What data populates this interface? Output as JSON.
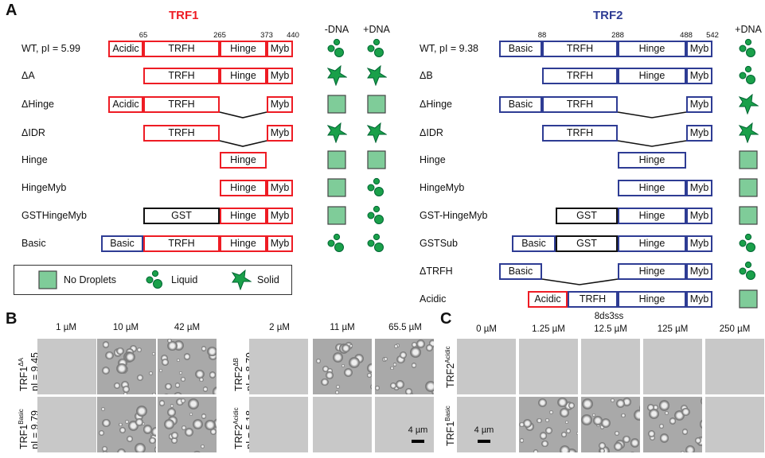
{
  "panel_labels": {
    "a": "A",
    "b": "B",
    "c": "C"
  },
  "colors": {
    "trf1": "#ee1c24",
    "trf2": "#2e3c94",
    "gst": "#111111",
    "droplet_fill": "#1aa04a",
    "no_droplet_fill": "#7fcc99"
  },
  "trf1": {
    "title": "TRF1",
    "residues": [
      "65",
      "265",
      "373",
      "440"
    ],
    "col_headers": [
      "-DNA",
      "+DNA"
    ],
    "rows": [
      {
        "label": "WT, pI = 5.99",
        "segments": [
          "Acidic",
          "TRFH",
          "Hinge",
          "Myb"
        ],
        "minus": "liquid",
        "plus": "liquid"
      },
      {
        "label": "ΔA",
        "segments": [
          "TRFH",
          "Hinge",
          "Myb"
        ],
        "minus": "solid",
        "plus": "solid"
      },
      {
        "label": "ΔHinge",
        "segments": [
          "Acidic",
          "TRFH",
          "Myb"
        ],
        "minus": "none",
        "plus": "none"
      },
      {
        "label": "ΔIDR",
        "segments": [
          "TRFH",
          "Myb"
        ],
        "minus": "solid",
        "plus": "solid"
      },
      {
        "label": "Hinge",
        "segments": [
          "Hinge"
        ],
        "minus": "none",
        "plus": "none"
      },
      {
        "label": "HingeMyb",
        "segments": [
          "Hinge",
          "Myb"
        ],
        "minus": "none",
        "plus": "liquid"
      },
      {
        "label": "GSTHingeMyb",
        "segments": [
          "GST",
          "Hinge",
          "Myb"
        ],
        "minus": "none",
        "plus": "liquid"
      },
      {
        "label": "Basic",
        "segments": [
          "Basic",
          "TRFH",
          "Hinge",
          "Myb"
        ],
        "minus": "liquid",
        "plus": "liquid"
      }
    ]
  },
  "legend": {
    "none": "No Droplets",
    "liquid": "Liquid",
    "solid": "Solid"
  },
  "trf2": {
    "title": "TRF2",
    "residues": [
      "88",
      "288",
      "488",
      "542"
    ],
    "col_headers": [
      "+DNA"
    ],
    "rows": [
      {
        "label": "WT, pI = 9.38",
        "segments": [
          "Basic",
          "TRFH",
          "Hinge",
          "Myb"
        ],
        "plus": "liquid"
      },
      {
        "label": "ΔB",
        "segments": [
          "TRFH",
          "Hinge",
          "Myb"
        ],
        "plus": "liquid"
      },
      {
        "label": "ΔHinge",
        "segments": [
          "Basic",
          "TRFH",
          "Myb"
        ],
        "plus": "solid"
      },
      {
        "label": "ΔIDR",
        "segments": [
          "TRFH",
          "Myb"
        ],
        "plus": "solid"
      },
      {
        "label": "Hinge",
        "segments": [
          "Hinge"
        ],
        "plus": "none"
      },
      {
        "label": "HingeMyb",
        "segments": [
          "Hinge",
          "Myb"
        ],
        "plus": "none"
      },
      {
        "label": "GST-HingeMyb",
        "segments": [
          "GST",
          "Hinge",
          "Myb"
        ],
        "plus": "none"
      },
      {
        "label": "GSTSub",
        "segments": [
          "Basic",
          "GST",
          "Hinge",
          "Myb"
        ],
        "plus": "liquid"
      },
      {
        "label": "ΔTRFH",
        "segments": [
          "Basic",
          "Hinge",
          "Myb"
        ],
        "plus": "liquid"
      },
      {
        "label": "Acidic",
        "segments": [
          "Acidic",
          "TRFH",
          "Hinge",
          "Myb"
        ],
        "plus": "none"
      }
    ]
  },
  "panel_b": {
    "left": {
      "concentrations": [
        "1 µM",
        "10 µM",
        "42 µM"
      ],
      "rows": [
        {
          "name": "TRF1",
          "sup": "ΔA",
          "pi": "pI = 9.45",
          "droplets": [
            false,
            true,
            true
          ]
        },
        {
          "name": "TRF1",
          "sup": "Basic",
          "pi": "pI = 9.79",
          "droplets": [
            false,
            true,
            true
          ]
        }
      ]
    },
    "right": {
      "concentrations": [
        "2 µM",
        "11 µM",
        "65.5 µM"
      ],
      "rows": [
        {
          "name": "TRF2",
          "sup": "ΔB",
          "pi": "pI = 8.79",
          "droplets": [
            false,
            true,
            true
          ]
        },
        {
          "name": "TRF2",
          "sup": "Acidic",
          "pi": "pI = 5.18",
          "droplets": [
            false,
            false,
            false
          ]
        }
      ]
    },
    "scale_bar": "4 µm"
  },
  "panel_c": {
    "dna": "8ds3ss",
    "concentrations": [
      "0 µM",
      "1.25 µM",
      "12.5 µM",
      "125 µM",
      "250 µM"
    ],
    "rows": [
      {
        "name": "TRF2",
        "sup": "Acidic",
        "droplets": [
          false,
          false,
          false,
          false,
          false
        ]
      },
      {
        "name": "TRF1",
        "sup": "Basic",
        "droplets": [
          false,
          true,
          true,
          true,
          false
        ]
      }
    ],
    "scale_bar": "4 µm"
  }
}
